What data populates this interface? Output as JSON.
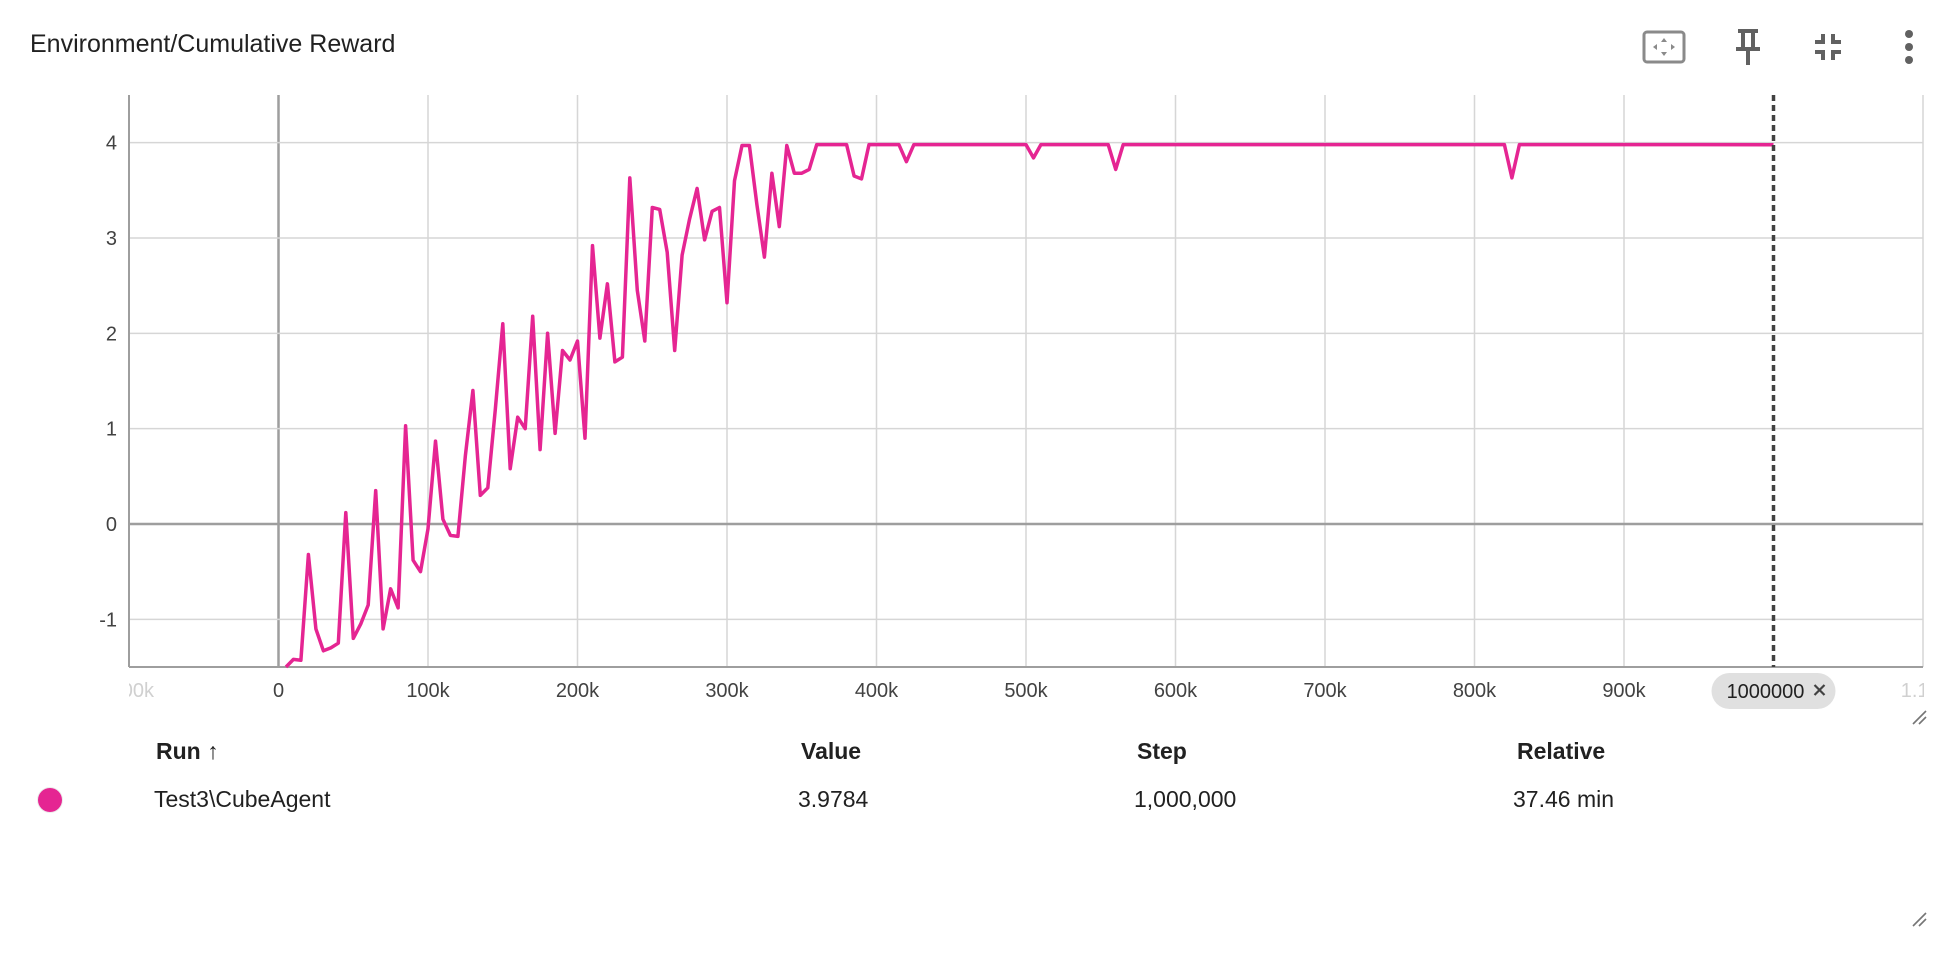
{
  "card": {
    "title": "Environment/Cumulative Reward",
    "toolbar": {
      "fit_icon": "fit-domain-icon",
      "pin_icon": "pin-icon",
      "collapse_icon": "collapse-icon",
      "more_icon": "more-vert-icon"
    }
  },
  "colors": {
    "series": "#e52592",
    "grid": "#d6d6d6",
    "axis": "#9e9e9e",
    "cursor_line": "#424242",
    "tag_bg": "#e0e0e0"
  },
  "chart_data": {
    "type": "line",
    "title": "Environment/Cumulative Reward",
    "xlabel": "",
    "ylabel": "",
    "xlim": [
      -100000,
      1100000
    ],
    "ylim": [
      -1.5,
      4.5
    ],
    "x_ticks": [
      0,
      100000,
      200000,
      300000,
      400000,
      500000,
      600000,
      700000,
      800000,
      900000
    ],
    "x_tick_labels": [
      "0",
      "100k",
      "200k",
      "300k",
      "400k",
      "500k",
      "600k",
      "700k",
      "800k",
      "900k"
    ],
    "x_edge_labels": [
      "-100k",
      "1.1M"
    ],
    "y_ticks": [
      -1,
      0,
      1,
      2,
      3,
      4
    ],
    "y_tick_labels": [
      "-1",
      "0",
      "1",
      "2",
      "3",
      "4"
    ],
    "grid": true,
    "cursor_step": 1000000,
    "cursor_label": "1000000",
    "series": [
      {
        "name": "Test3\\CubeAgent",
        "x": [
          5000,
          10000,
          15000,
          20000,
          25000,
          30000,
          35000,
          40000,
          45000,
          50000,
          55000,
          60000,
          65000,
          70000,
          75000,
          80000,
          85000,
          90000,
          95000,
          100000,
          105000,
          110000,
          115000,
          120000,
          125000,
          130000,
          135000,
          140000,
          145000,
          150000,
          155000,
          160000,
          165000,
          170000,
          175000,
          180000,
          185000,
          190000,
          195000,
          200000,
          205000,
          210000,
          215000,
          220000,
          225000,
          230000,
          235000,
          240000,
          245000,
          250000,
          255000,
          260000,
          265000,
          270000,
          275000,
          280000,
          285000,
          290000,
          295000,
          300000,
          305000,
          310000,
          315000,
          320000,
          325000,
          330000,
          335000,
          340000,
          345000,
          350000,
          355000,
          360000,
          365000,
          370000,
          375000,
          380000,
          385000,
          390000,
          395000,
          400000,
          405000,
          410000,
          415000,
          420000,
          425000,
          430000,
          440000,
          460000,
          480000,
          500000,
          505000,
          510000,
          520000,
          540000,
          555000,
          560000,
          565000,
          570000,
          600000,
          700000,
          800000,
          820000,
          825000,
          830000,
          850000,
          900000,
          950000,
          1000000
        ],
        "y": [
          -1.5,
          -1.42,
          -1.43,
          -0.32,
          -1.1,
          -1.33,
          -1.3,
          -1.25,
          0.12,
          -1.2,
          -1.05,
          -0.85,
          0.35,
          -1.1,
          -0.68,
          -0.88,
          1.03,
          -0.38,
          -0.5,
          -0.05,
          0.87,
          0.05,
          -0.12,
          -0.13,
          0.72,
          1.4,
          0.3,
          0.38,
          1.2,
          2.1,
          0.58,
          1.12,
          1.0,
          2.18,
          0.78,
          2.0,
          0.95,
          1.82,
          1.72,
          1.92,
          0.9,
          2.92,
          1.95,
          2.52,
          1.7,
          1.75,
          3.63,
          2.45,
          1.92,
          3.32,
          3.3,
          2.85,
          1.82,
          2.82,
          3.2,
          3.52,
          2.98,
          3.28,
          3.32,
          2.32,
          3.6,
          3.97,
          3.97,
          3.35,
          2.8,
          3.68,
          3.12,
          3.97,
          3.68,
          3.68,
          3.72,
          3.98,
          3.98,
          3.98,
          3.98,
          3.98,
          3.65,
          3.62,
          3.98,
          3.98,
          3.98,
          3.98,
          3.98,
          3.8,
          3.98,
          3.98,
          3.98,
          3.98,
          3.98,
          3.98,
          3.84,
          3.98,
          3.98,
          3.98,
          3.98,
          3.72,
          3.98,
          3.98,
          3.98,
          3.98,
          3.98,
          3.98,
          3.63,
          3.98,
          3.98,
          3.98,
          3.98,
          3.9784
        ]
      }
    ]
  },
  "table": {
    "headers": {
      "run": "Run",
      "sort_indicator": "↑",
      "value": "Value",
      "step": "Step",
      "relative": "Relative"
    },
    "rows": [
      {
        "run": "Test3\\CubeAgent",
        "value": "3.9784",
        "step": "1,000,000",
        "relative": "37.46 min"
      }
    ]
  }
}
